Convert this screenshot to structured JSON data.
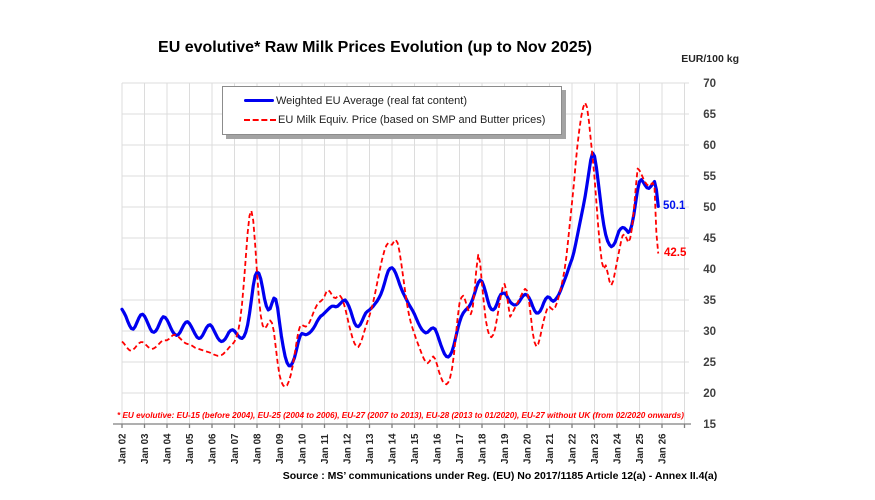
{
  "title": "EU evolutive* Raw Milk Prices Evolution (up to Nov 2025)",
  "unit_label": "EUR/100 kg",
  "annotations": {
    "blue_end": "50.1",
    "red_end": "42.5"
  },
  "footnote": "* EU evolutive: EU-15 (before 2004), EU-25 (2004 to 2006), EU-27 (2007 to 2013), EU-28 (2013 to 01/2020), EU-27 without UK (from 02/2020 onwards)",
  "source": "Source : MS’ communications under Reg. (EU) No 2017/1185 Article 12(a) - Annex II.4(a)",
  "colors": {
    "blue": "#0000F0",
    "red": "#FF0000",
    "grid": "#DCDCDC",
    "axis": "#7F7F7F"
  },
  "chart_data": {
    "type": "line",
    "title": "EU evolutive* Raw Milk Prices Evolution (up to Nov 2025)",
    "xlabel": "",
    "ylabel": "EUR/100 kg",
    "ylim": [
      15,
      70
    ],
    "y_ticks": [
      15,
      20,
      25,
      30,
      35,
      40,
      45,
      50,
      55,
      60,
      65,
      70
    ],
    "x_tick_labels": [
      "Jan 02",
      "Jan 03",
      "Jan 04",
      "Jan 05",
      "Jan 06",
      "Jan 07",
      "Jan 08",
      "Jan 09",
      "Jan 10",
      "Jan 11",
      "Jan 12",
      "Jan 13",
      "Jan 14",
      "Jan 15",
      "Jan 16",
      "Jan 17",
      "Jan 18",
      "Jan 19",
      "Jan 20",
      "Jan 21",
      "Jan 22",
      "Jan 23",
      "Jan 24",
      "Jan 25",
      "Jan 26"
    ],
    "x_period": "monthly, Jan 2002 to Nov 2025",
    "grid": true,
    "legend_position": "top-left-inside",
    "series": [
      {
        "name": "Weighted EU Average (real fat content)",
        "color": "#0000F0",
        "line_style": "solid",
        "last_value": 50.1,
        "values": [
          33.5,
          33.0,
          32.4,
          31.6,
          30.9,
          30.4,
          30.3,
          30.7,
          31.4,
          32.1,
          32.6,
          32.7,
          32.4,
          31.8,
          31.1,
          30.4,
          29.9,
          29.8,
          30.0,
          30.5,
          31.2,
          31.9,
          32.3,
          32.2,
          31.8,
          31.2,
          30.5,
          29.9,
          29.5,
          29.3,
          29.4,
          29.8,
          30.4,
          31.0,
          31.4,
          31.5,
          31.2,
          30.7,
          30.1,
          29.5,
          29.0,
          28.8,
          28.9,
          29.3,
          29.9,
          30.5,
          30.9,
          31.0,
          30.7,
          30.1,
          29.5,
          28.9,
          28.5,
          28.3,
          28.4,
          28.7,
          29.2,
          29.8,
          30.1,
          30.2,
          30.0,
          29.6,
          29.2,
          28.9,
          28.8,
          29.1,
          29.8,
          31.0,
          32.8,
          35.0,
          37.3,
          38.9,
          39.5,
          39.3,
          38.4,
          36.9,
          35.2,
          34.0,
          33.4,
          33.6,
          34.5,
          35.3,
          35.1,
          33.7,
          31.4,
          29.2,
          27.4,
          25.9,
          24.9,
          24.4,
          24.4,
          24.9,
          25.7,
          26.9,
          28.2,
          29.2,
          29.6,
          29.5,
          29.4,
          29.5,
          29.7,
          30.0,
          30.4,
          30.9,
          31.5,
          32.0,
          32.4,
          32.6,
          32.9,
          33.2,
          33.5,
          33.8,
          34.0,
          34.0,
          33.9,
          34.0,
          34.3,
          34.6,
          34.9,
          35.0,
          34.6,
          34.0,
          33.2,
          32.2,
          31.3,
          30.8,
          30.7,
          31.0,
          31.6,
          32.3,
          32.9,
          33.2,
          33.4,
          33.7,
          34.0,
          34.4,
          34.8,
          35.3,
          35.9,
          36.7,
          37.7,
          38.8,
          39.7,
          40.1,
          40.2,
          39.9,
          39.3,
          38.5,
          37.6,
          36.8,
          36.1,
          35.5,
          34.9,
          34.3,
          33.8,
          33.3,
          32.7,
          32.0,
          31.3,
          30.7,
          30.2,
          29.9,
          29.7,
          29.8,
          30.1,
          30.4,
          30.5,
          30.3,
          29.6,
          28.7,
          27.8,
          27.0,
          26.3,
          25.9,
          25.8,
          26.1,
          26.7,
          27.7,
          29.0,
          30.3,
          31.4,
          32.3,
          32.9,
          33.3,
          33.6,
          33.9,
          34.4,
          35.1,
          36.0,
          37.0,
          37.8,
          38.2,
          38.0,
          37.2,
          36.2,
          35.0,
          34.0,
          33.5,
          33.4,
          33.7,
          34.4,
          35.3,
          35.9,
          36.1,
          36.1,
          35.8,
          35.2,
          34.7,
          34.4,
          34.2,
          34.2,
          34.4,
          34.8,
          35.3,
          35.7,
          35.9,
          35.8,
          35.4,
          34.8,
          34.0,
          33.3,
          32.9,
          32.9,
          33.2,
          33.8,
          34.6,
          35.2,
          35.5,
          35.4,
          35.0,
          34.8,
          35.0,
          35.4,
          35.9,
          36.6,
          37.4,
          38.2,
          39.0,
          39.9,
          40.8,
          41.6,
          42.7,
          44.1,
          45.6,
          47.1,
          48.6,
          50.1,
          51.7,
          53.6,
          55.6,
          57.6,
          58.7,
          58.2,
          56.4,
          54.0,
          51.5,
          49.0,
          47.0,
          45.5,
          44.5,
          43.9,
          43.6,
          43.8,
          44.3,
          45.2,
          46.1,
          46.5,
          46.7,
          46.6,
          46.3,
          45.9,
          46.2,
          47.2,
          48.8,
          50.8,
          52.8,
          54.1,
          54.4,
          54.0,
          53.5,
          53.1,
          53.0,
          53.3,
          53.7,
          54.1,
          52.8,
          50.1
        ]
      },
      {
        "name": "EU Milk Equiv. Price (based on SMP and Butter prices)",
        "color": "#FF0000",
        "line_style": "dashed",
        "last_value": 42.5,
        "values": [
          28.3,
          28.0,
          27.6,
          27.2,
          26.9,
          26.8,
          27.0,
          27.3,
          27.7,
          28.0,
          28.2,
          28.2,
          28.0,
          27.7,
          27.4,
          27.2,
          27.1,
          27.2,
          27.4,
          27.7,
          28.0,
          28.3,
          28.5,
          28.5,
          28.5,
          28.7,
          29.0,
          29.3,
          29.4,
          29.3,
          29.1,
          28.8,
          28.5,
          28.2,
          28.0,
          27.9,
          27.8,
          27.7,
          27.5,
          27.3,
          27.2,
          27.1,
          27.0,
          26.9,
          26.8,
          26.7,
          26.6,
          26.5,
          26.4,
          26.2,
          26.1,
          26.0,
          26.0,
          26.1,
          26.3,
          26.6,
          26.9,
          27.3,
          27.6,
          27.9,
          28.3,
          29.0,
          30.0,
          31.8,
          34.3,
          37.8,
          41.8,
          45.8,
          48.6,
          49.4,
          47.8,
          44.0,
          39.5,
          35.3,
          32.5,
          30.9,
          30.4,
          30.7,
          31.3,
          31.7,
          31.3,
          29.9,
          27.4,
          24.9,
          22.9,
          21.8,
          21.2,
          21.0,
          21.2,
          21.9,
          22.9,
          24.3,
          26.1,
          28.0,
          29.8,
          30.8,
          31.0,
          30.8,
          30.7,
          30.9,
          31.4,
          32.1,
          32.9,
          33.6,
          34.2,
          34.6,
          34.8,
          35.1,
          35.6,
          36.3,
          36.6,
          36.3,
          35.8,
          35.4,
          35.3,
          35.6,
          35.8,
          35.4,
          34.7,
          33.7,
          32.4,
          31.1,
          29.9,
          28.8,
          28.0,
          27.5,
          27.4,
          27.9,
          28.7,
          29.7,
          30.7,
          31.6,
          32.5,
          33.5,
          34.7,
          36.1,
          37.6,
          39.1,
          40.6,
          41.9,
          43.0,
          43.8,
          44.2,
          44.0,
          43.9,
          44.4,
          44.7,
          44.2,
          42.8,
          40.8,
          38.6,
          36.4,
          34.4,
          32.7,
          31.4,
          30.4,
          29.5,
          28.6,
          27.8,
          27.0,
          26.2,
          25.5,
          25.0,
          24.8,
          25.1,
          25.6,
          25.9,
          25.5,
          24.6,
          23.5,
          22.6,
          21.9,
          21.5,
          21.4,
          21.7,
          22.5,
          23.9,
          26.1,
          29.1,
          32.1,
          34.5,
          35.4,
          35.7,
          35.0,
          34.0,
          33.1,
          32.7,
          33.6,
          36.5,
          40.0,
          42.3,
          41.0,
          37.5,
          34.5,
          31.8,
          30.2,
          29.2,
          29.0,
          29.4,
          30.4,
          32.0,
          33.8,
          35.6,
          37.0,
          37.6,
          36.5,
          34.2,
          32.3,
          32.8,
          33.4,
          34.0,
          34.6,
          35.2,
          35.8,
          36.4,
          36.8,
          36.5,
          35.0,
          32.5,
          29.8,
          28.2,
          27.5,
          27.9,
          29.0,
          30.5,
          31.8,
          32.9,
          33.8,
          33.9,
          33.6,
          33.4,
          33.8,
          34.6,
          35.6,
          36.8,
          38.2,
          39.8,
          42.0,
          44.8,
          47.8,
          50.7,
          53.7,
          57.2,
          60.2,
          62.7,
          64.7,
          66.1,
          66.8,
          66.1,
          63.9,
          60.9,
          57.9,
          54.8,
          50.8,
          46.8,
          43.4,
          41.0,
          40.0,
          40.6,
          39.4,
          38.0,
          37.4,
          38.1,
          39.6,
          41.2,
          42.7,
          44.2,
          45.4,
          45.6,
          45.0,
          44.3,
          44.9,
          46.6,
          49.6,
          53.1,
          56.2,
          55.9,
          55.3,
          54.6,
          54.0,
          53.6,
          53.4,
          53.6,
          53.9,
          53.2,
          45.8,
          42.5
        ]
      }
    ]
  }
}
